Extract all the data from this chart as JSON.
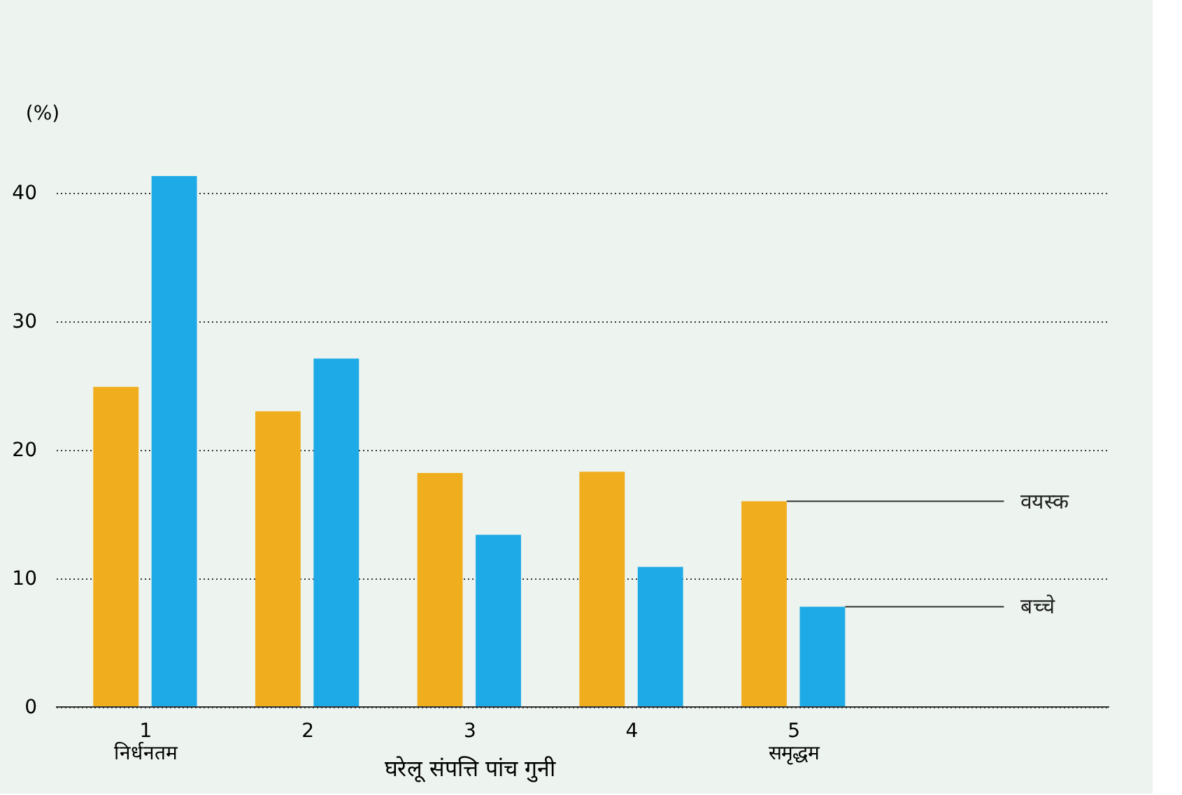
{
  "chart_data": {
    "type": "bar",
    "categories": [
      "1\nनिर्धनतम",
      "2",
      "3",
      "4",
      "5\nसमृद्धम"
    ],
    "xlabel": "घरेलू संपत्ति पांच गुनी",
    "ylabel": "(%)",
    "series": [
      {
        "name": "वयस्क",
        "color": "#f0ae1e",
        "values": [
          24.9,
          23.0,
          18.2,
          18.3,
          16.0
        ]
      },
      {
        "name": "बच्चे",
        "color": "#1eaae6",
        "values": [
          41.3,
          27.1,
          13.4,
          10.9,
          7.8
        ]
      }
    ],
    "ylim": [
      0,
      41.3
    ],
    "yticks": [
      0,
      10,
      20,
      30,
      40
    ],
    "grid": "y",
    "legend": false
  }
}
